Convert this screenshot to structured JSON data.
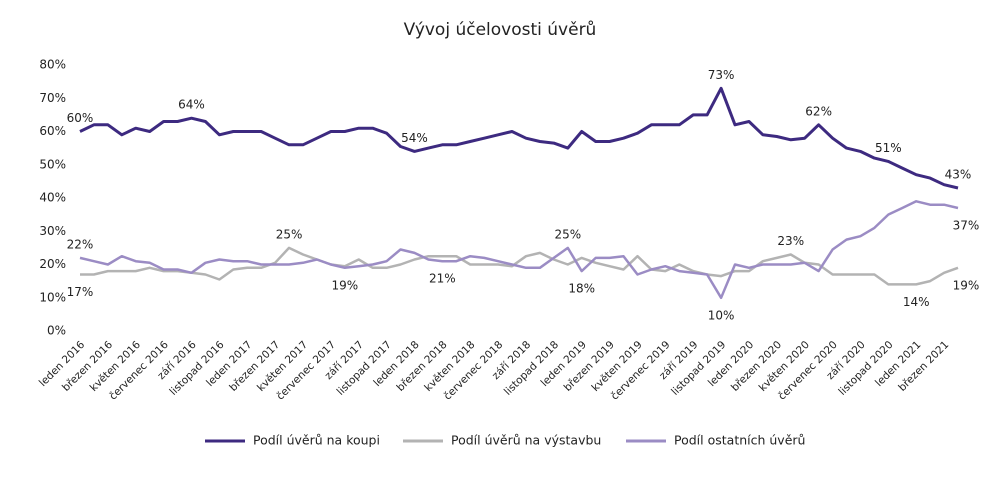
{
  "chart_data": {
    "type": "line",
    "title": "Vývoj účelovosti úvěrů",
    "categories": [
      "leden 2016",
      null,
      "březen 2016",
      null,
      "květen 2016",
      null,
      "červenec 2016",
      null,
      "září 2016",
      null,
      "listopad 2016",
      null,
      "leden 2017",
      null,
      "březen 2017",
      null,
      "květen 2017",
      null,
      "červenec 2017",
      null,
      "září 2017",
      null,
      "listopad 2017",
      null,
      "leden 2018",
      null,
      "březen 2018",
      null,
      "květen 2018",
      null,
      "červenec 2018",
      null,
      "září 2018",
      null,
      "listopad 2018",
      null,
      "leden 2019",
      null,
      "březen 2019",
      null,
      "květen 2019",
      null,
      "červenec 2019",
      null,
      "září 2019",
      null,
      "listopad 2019",
      null,
      "leden 2020",
      null,
      "březen 2020",
      null,
      "květen 2020",
      null,
      "červenec 2020",
      null,
      "září 2020",
      null,
      "listopad 2020",
      null,
      "leden 2021",
      null,
      "březen 2021",
      null
    ],
    "series": [
      {
        "name": "Podíl úvěrů na koupi",
        "color": "#3d2a80",
        "values": [
          60,
          62,
          62,
          59,
          61,
          60,
          63,
          63,
          64,
          63,
          59,
          60,
          60,
          60,
          58,
          56,
          56,
          58,
          60,
          60,
          61,
          61,
          59.5,
          55.5,
          54,
          55,
          56,
          56,
          57,
          58,
          59,
          60,
          58,
          57,
          56.5,
          55,
          60,
          57,
          57,
          58,
          59.5,
          62,
          62,
          62,
          65,
          65,
          73,
          62,
          63,
          59,
          58.5,
          57.5,
          58,
          62,
          58,
          55,
          54,
          52,
          51,
          49,
          47,
          46,
          44,
          43
        ],
        "value_labels": [
          "60%",
          null,
          null,
          null,
          null,
          null,
          null,
          null,
          "64%",
          null,
          null,
          null,
          null,
          null,
          null,
          null,
          null,
          null,
          null,
          null,
          null,
          null,
          null,
          null,
          "54%",
          null,
          null,
          null,
          null,
          null,
          null,
          null,
          null,
          null,
          null,
          null,
          null,
          null,
          null,
          null,
          null,
          null,
          null,
          null,
          null,
          null,
          "73%",
          null,
          null,
          null,
          null,
          null,
          null,
          "62%",
          null,
          null,
          null,
          null,
          "51%",
          null,
          null,
          null,
          null,
          "43%"
        ]
      },
      {
        "name": "Podíl úvěrů na výstavbu",
        "color": "#b3b3b3",
        "values": [
          17,
          17,
          18,
          18,
          18,
          19,
          18,
          18,
          17.5,
          17,
          15.5,
          18.5,
          19,
          19,
          20.5,
          25,
          23,
          21.5,
          20,
          19.5,
          21.5,
          19,
          19,
          20,
          21.5,
          22.5,
          22.5,
          22.5,
          20,
          20,
          20,
          19.5,
          22.5,
          23.5,
          21.5,
          20,
          22,
          20.5,
          19.5,
          18.5,
          22.5,
          18.5,
          18,
          20,
          18,
          17,
          16.5,
          18,
          18,
          21,
          22,
          23,
          20.5,
          20,
          17,
          17,
          17,
          17,
          14,
          14,
          14,
          15,
          17.5,
          19
        ],
        "value_labels": [
          "17%",
          null,
          null,
          null,
          null,
          null,
          null,
          null,
          null,
          null,
          null,
          null,
          null,
          null,
          null,
          "25%",
          null,
          null,
          null,
          null,
          null,
          null,
          null,
          null,
          null,
          null,
          null,
          null,
          null,
          null,
          null,
          null,
          null,
          null,
          null,
          null,
          null,
          null,
          null,
          null,
          null,
          null,
          null,
          null,
          null,
          null,
          null,
          null,
          null,
          null,
          null,
          "23%",
          null,
          null,
          null,
          null,
          null,
          null,
          null,
          null,
          "14%",
          null,
          null,
          "19%"
        ]
      },
      {
        "name": "Podíl ostatních úvěrů",
        "color": "#9b8cc4",
        "values": [
          22,
          21,
          20,
          22.5,
          21,
          20.5,
          18.5,
          18.5,
          17.5,
          20.5,
          21.5,
          21,
          21,
          20,
          20,
          20,
          20.5,
          21.5,
          20,
          19,
          19.5,
          20,
          21,
          24.5,
          23.5,
          21.5,
          21,
          21,
          22.5,
          22,
          21,
          20,
          19,
          19,
          22,
          25,
          18,
          22,
          22,
          22.5,
          17,
          18.5,
          19.5,
          18,
          17.5,
          17,
          10,
          20,
          19,
          20,
          20,
          20,
          20.5,
          18,
          24.5,
          27.5,
          28.5,
          31,
          35,
          37,
          39,
          38,
          38,
          37
        ],
        "value_labels": [
          "22%",
          null,
          null,
          null,
          null,
          null,
          null,
          null,
          null,
          null,
          null,
          null,
          null,
          null,
          null,
          null,
          null,
          null,
          null,
          "19%",
          null,
          null,
          null,
          null,
          null,
          null,
          "21%",
          null,
          null,
          null,
          null,
          null,
          null,
          null,
          null,
          "25%",
          "18%",
          null,
          null,
          null,
          null,
          null,
          null,
          null,
          null,
          null,
          "10%",
          null,
          null,
          null,
          null,
          null,
          null,
          null,
          null,
          null,
          null,
          null,
          null,
          null,
          null,
          null,
          null,
          "37%"
        ]
      }
    ],
    "ylim": [
      0,
      80
    ],
    "yticks": [
      {
        "value": 0,
        "label": "0%"
      },
      {
        "value": 10,
        "label": "10%"
      },
      {
        "value": 20,
        "label": "20%"
      },
      {
        "value": 30,
        "label": "30%"
      },
      {
        "value": 40,
        "label": "40%"
      },
      {
        "value": 50,
        "label": "50%"
      },
      {
        "value": 60,
        "label": "60%"
      },
      {
        "value": 70,
        "label": "70%"
      },
      {
        "value": 80,
        "label": "80%"
      }
    ],
    "grid": false,
    "legend": "bottom"
  }
}
